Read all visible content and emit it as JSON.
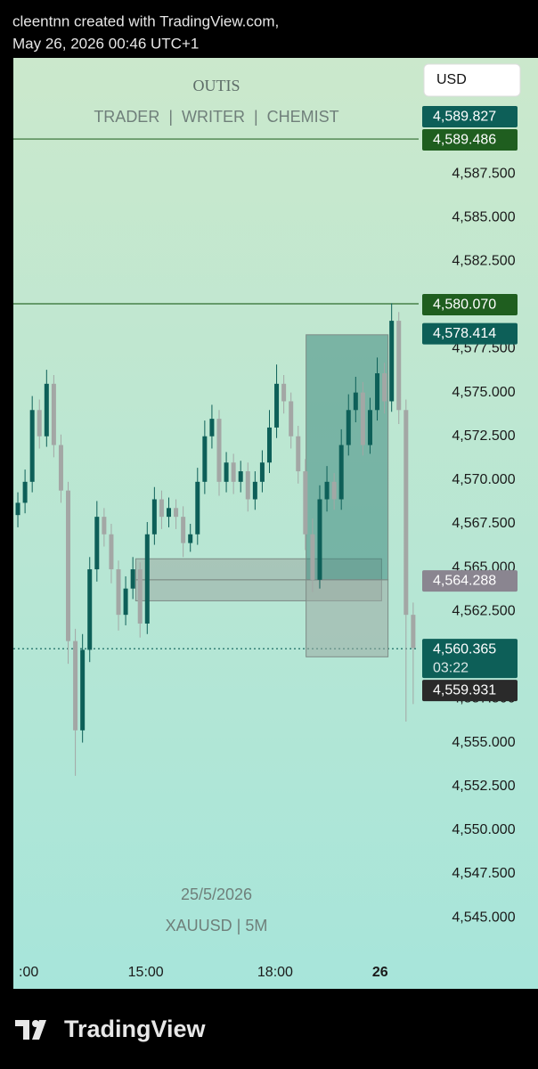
{
  "header": {
    "line1": "cleentnn created with TradingView.com,",
    "line2": "May 26, 2026 00:46 UTC+1"
  },
  "currency_button": "USD",
  "logo": "TradingView",
  "chart_data": {
    "type": "candlestick",
    "watermark": {
      "name": "OUTIS",
      "tagline": "TRADER  |  WRITER  |  CHEMIST",
      "date": "25/5/2026",
      "symbol": "XAUUSD | 5M"
    },
    "up_color": "#0d5f58",
    "down_color": "#a3a7a5",
    "open": [
      4568.0,
      4568.7,
      4569.9,
      4574.0,
      4572.5,
      4575.5,
      4572.0,
      4569.4,
      4560.8,
      4555.7,
      4560.3,
      4564.9,
      4567.9,
      4566.9,
      4564.9,
      4562.3,
      4563.8,
      4564.9,
      4561.8,
      4566.9,
      4568.9,
      4567.9,
      4568.4,
      4567.9,
      4566.4,
      4566.9,
      4569.9,
      4572.5,
      4573.5,
      4569.9,
      4571.0,
      4569.9,
      4570.5,
      4568.9,
      4569.9,
      4571.0,
      4573.0,
      4575.5,
      4574.5,
      4572.5,
      4570.5,
      4566.9,
      4564.3,
      4568.9,
      4569.9,
      4568.9,
      4572.0,
      4574.0,
      4575.0,
      4572.0,
      4574.0,
      4576.1,
      4574.5,
      4579.1,
      4574.0,
      4562.3
    ],
    "high": [
      4569.3,
      4570.6,
      4574.8,
      4574.6,
      4576.3,
      4576.0,
      4572.6,
      4569.9,
      4561.5,
      4561.2,
      4565.6,
      4568.8,
      4568.4,
      4567.5,
      4565.4,
      4564.5,
      4565.6,
      4565.3,
      4567.6,
      4569.6,
      4569.4,
      4569.0,
      4568.9,
      4568.5,
      4567.5,
      4570.7,
      4573.4,
      4574.3,
      4574.0,
      4571.6,
      4571.5,
      4571.1,
      4571.0,
      4570.5,
      4571.7,
      4574.0,
      4576.6,
      4576.0,
      4575.0,
      4573.1,
      4571.2,
      4567.8,
      4569.7,
      4570.8,
      4570.4,
      4572.9,
      4574.9,
      4575.9,
      4575.6,
      4574.7,
      4577.0,
      4576.7,
      4580.1,
      4579.6,
      4574.6,
      4563.0
    ],
    "low": [
      4567.3,
      4568.1,
      4569.3,
      4571.8,
      4571.9,
      4571.3,
      4568.7,
      4559.5,
      4553.1,
      4555.0,
      4559.6,
      4564.2,
      4566.2,
      4564.1,
      4561.4,
      4561.7,
      4563.2,
      4561.0,
      4561.2,
      4566.3,
      4567.2,
      4567.3,
      4567.2,
      4565.6,
      4565.9,
      4566.3,
      4569.2,
      4571.8,
      4569.1,
      4569.3,
      4569.2,
      4569.3,
      4568.2,
      4568.3,
      4569.3,
      4570.4,
      4572.4,
      4573.8,
      4571.8,
      4569.8,
      4566.0,
      4563.6,
      4563.8,
      4568.2,
      4568.3,
      4568.3,
      4571.4,
      4573.3,
      4571.4,
      4571.5,
      4573.4,
      4573.8,
      4573.9,
      4573.2,
      4556.2,
      4557.2
    ],
    "close": [
      4568.7,
      4569.9,
      4574.0,
      4572.5,
      4575.5,
      4572.0,
      4569.4,
      4560.8,
      4555.7,
      4560.3,
      4564.9,
      4567.9,
      4566.9,
      4564.9,
      4562.3,
      4563.8,
      4564.9,
      4561.8,
      4566.9,
      4568.9,
      4567.9,
      4568.4,
      4567.9,
      4566.4,
      4566.9,
      4569.9,
      4572.5,
      4573.5,
      4569.9,
      4571.0,
      4569.9,
      4570.5,
      4568.9,
      4569.9,
      4571.0,
      4573.0,
      4575.5,
      4574.5,
      4572.5,
      4570.5,
      4566.9,
      4564.3,
      4568.9,
      4569.9,
      4568.9,
      4572.0,
      4574.0,
      4575.0,
      4572.0,
      4574.0,
      4576.1,
      4574.5,
      4579.1,
      4574.0,
      4562.3,
      4560.4
    ],
    "xlim": [
      -0.5,
      57.5
    ],
    "xticks": [
      {
        "value": 1.5,
        "label": ":00"
      },
      {
        "value": 17.8,
        "label": "15:00"
      },
      {
        "value": 35.8,
        "label": "18:00"
      },
      {
        "value": 50.4,
        "label": "26"
      }
    ],
    "ylim": [
      4540.93,
      4594.12
    ],
    "yticks": [
      {
        "value": 4545.0,
        "label": "4,545.000"
      },
      {
        "value": 4547.5,
        "label": "4,547.500"
      },
      {
        "value": 4550.0,
        "label": "4,550.000"
      },
      {
        "value": 4552.5,
        "label": "4,552.500"
      },
      {
        "value": 4555.0,
        "label": "4,555.000"
      },
      {
        "value": 4557.5,
        "label": "4,557.500"
      },
      {
        "value": 4560.0,
        "label": "4,560.000"
      },
      {
        "value": 4562.5,
        "label": "4,562.500"
      },
      {
        "value": 4565.0,
        "label": "4,565.000"
      },
      {
        "value": 4567.5,
        "label": "4,567.500"
      },
      {
        "value": 4570.0,
        "label": "4,570.000"
      },
      {
        "value": 4572.5,
        "label": "4,572.500"
      },
      {
        "value": 4575.0,
        "label": "4,575.000"
      },
      {
        "value": 4577.5,
        "label": "4,577.500"
      },
      {
        "value": 4580.0,
        "label": "4,580.000"
      },
      {
        "value": 4582.5,
        "label": "4,582.500"
      },
      {
        "value": 4585.0,
        "label": "4,585.000"
      },
      {
        "value": 4587.5,
        "label": "4,587.500"
      }
    ],
    "hlines": [
      {
        "value": 4589.486,
        "color": "#2e6b2e",
        "style": "solid"
      },
      {
        "value": 4580.07,
        "color": "#2e6b2e",
        "style": "solid"
      },
      {
        "value": 4560.365,
        "color": "#0d5f58",
        "style": "dotted"
      }
    ],
    "zones": [
      {
        "from": 16.4,
        "to": 50.6,
        "top": 4565.5,
        "bottom": 4564.3,
        "color": "#9aa9a3"
      },
      {
        "from": 16.4,
        "to": 50.6,
        "top": 4564.3,
        "bottom": 4563.1,
        "color": "#9aa9a3"
      },
      {
        "from": 40.1,
        "to": 51.5,
        "top": 4578.3,
        "bottom": 4564.3,
        "color": "#3f8a7f"
      },
      {
        "from": 40.1,
        "to": 51.5,
        "top": 4564.3,
        "bottom": 4559.9,
        "color": "#9aa9a3"
      }
    ],
    "price_labels": [
      {
        "value": 4589.827,
        "label": "4,589.827",
        "color": "#0d5f58"
      },
      {
        "value": 4589.486,
        "label": "4,589.486",
        "color": "#1f5e1f"
      },
      {
        "value": 4580.07,
        "label": "4,580.070",
        "color": "#1f5e1f"
      },
      {
        "value": 4578.414,
        "label": "4,578.414",
        "color": "#0d5f58"
      },
      {
        "value": 4564.288,
        "label": "4,564.288",
        "color": "#8a8590"
      },
      {
        "value": 4560.365,
        "label": "4,560.365",
        "countdown": "03:22",
        "color": "#0d5f58"
      },
      {
        "value": 4559.931,
        "label": "4,559.931",
        "color": "#2a2a2a"
      }
    ]
  }
}
